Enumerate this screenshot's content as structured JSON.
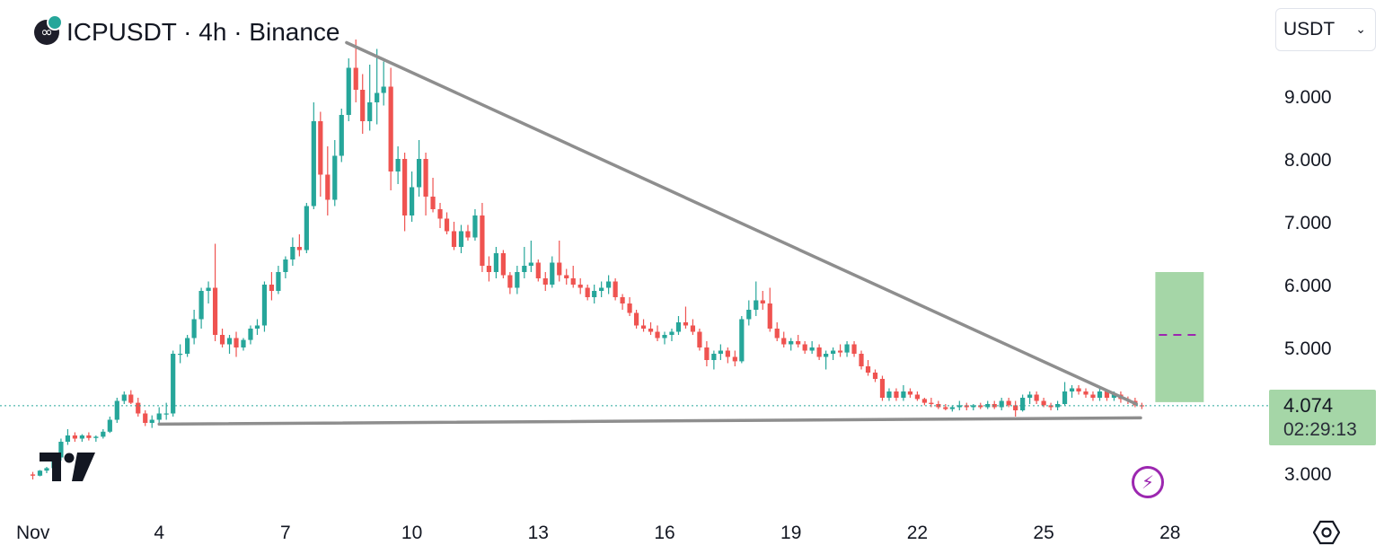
{
  "header": {
    "title": "ICPUSDT · 4h · Binance",
    "currency_label": "USDT"
  },
  "price_badge": {
    "price": "4.074",
    "countdown": "02:29:13"
  },
  "colors": {
    "up": "#26a69a",
    "down": "#ef5350",
    "trendline": "#8e8e8e",
    "position_box": "#a5d6a7",
    "position_target": "#9c27b0"
  },
  "icons": [
    "internet-computer-logo-icon",
    "tether-badge-icon",
    "chevron-down-icon",
    "tradingview-logo-icon",
    "lightning-icon",
    "settings-hexagon-icon"
  ],
  "chart_data": {
    "type": "candlestick",
    "x_tick_labels": [
      "Nov",
      "4",
      "7",
      "10",
      "13",
      "16",
      "19",
      "22",
      "25",
      "28"
    ],
    "x_tick_days": [
      1,
      4,
      7,
      10,
      13,
      16,
      19,
      22,
      25,
      28
    ],
    "y_tick_labels": [
      "3.000",
      "5.000",
      "6.000",
      "7.000",
      "8.000",
      "9.000"
    ],
    "y_tick_values": [
      3,
      5,
      6,
      7,
      8,
      9
    ],
    "y_range": [
      2.5,
      10.0
    ],
    "last_price": 4.074,
    "trendlines": [
      {
        "from": [
          8.45,
          9.85
        ],
        "to": [
          27.2,
          4.1
        ]
      },
      {
        "from": [
          4.0,
          3.78
        ],
        "to": [
          27.3,
          3.88
        ]
      }
    ],
    "position_box": {
      "day_start": 27.65,
      "day_end": 28.8,
      "low": 4.13,
      "high": 6.2,
      "target": 5.2
    },
    "candles": [
      [
        1.0,
        2.98,
        3.02,
        2.9,
        2.96
      ],
      [
        1.17,
        2.96,
        3.05,
        2.95,
        3.04
      ],
      [
        1.33,
        3.04,
        3.1,
        3.0,
        3.08
      ],
      [
        1.5,
        3.08,
        3.3,
        3.06,
        3.25
      ],
      [
        1.67,
        3.25,
        3.55,
        3.2,
        3.5
      ],
      [
        1.83,
        3.5,
        3.7,
        3.45,
        3.6
      ],
      [
        2.0,
        3.6,
        3.65,
        3.5,
        3.55
      ],
      [
        2.17,
        3.55,
        3.62,
        3.5,
        3.6
      ],
      [
        2.33,
        3.6,
        3.65,
        3.52,
        3.56
      ],
      [
        2.5,
        3.56,
        3.6,
        3.5,
        3.58
      ],
      [
        2.67,
        3.58,
        3.7,
        3.55,
        3.66
      ],
      [
        2.83,
        3.66,
        3.9,
        3.64,
        3.85
      ],
      [
        3.0,
        3.85,
        4.2,
        3.8,
        4.15
      ],
      [
        3.17,
        4.15,
        4.3,
        4.1,
        4.25
      ],
      [
        3.33,
        4.25,
        4.32,
        4.1,
        4.12
      ],
      [
        3.5,
        4.12,
        4.2,
        3.9,
        3.95
      ],
      [
        3.67,
        3.95,
        4.0,
        3.75,
        3.8
      ],
      [
        3.83,
        3.8,
        3.92,
        3.72,
        3.85
      ],
      [
        4.0,
        3.85,
        4.05,
        3.8,
        3.95
      ],
      [
        4.17,
        3.95,
        4.12,
        3.85,
        3.95
      ],
      [
        4.33,
        3.95,
        4.95,
        3.9,
        4.9
      ],
      [
        4.5,
        4.9,
        5.05,
        4.75,
        4.9
      ],
      [
        4.67,
        4.9,
        5.2,
        4.85,
        5.15
      ],
      [
        4.83,
        5.15,
        5.6,
        5.05,
        5.45
      ],
      [
        5.0,
        5.45,
        5.95,
        5.3,
        5.9
      ],
      [
        5.17,
        5.9,
        6.05,
        5.7,
        5.95
      ],
      [
        5.33,
        5.95,
        6.65,
        5.1,
        5.2
      ],
      [
        5.5,
        5.2,
        5.3,
        5.0,
        5.05
      ],
      [
        5.67,
        5.05,
        5.2,
        4.9,
        5.15
      ],
      [
        5.83,
        5.15,
        5.25,
        4.85,
        5.0
      ],
      [
        6.0,
        5.0,
        5.15,
        4.95,
        5.12
      ],
      [
        6.17,
        5.12,
        5.35,
        5.05,
        5.3
      ],
      [
        6.33,
        5.3,
        5.45,
        5.2,
        5.35
      ],
      [
        6.5,
        5.35,
        6.05,
        5.25,
        6.0
      ],
      [
        6.67,
        6.0,
        6.2,
        5.75,
        5.9
      ],
      [
        6.83,
        5.9,
        6.3,
        5.85,
        6.2
      ],
      [
        7.0,
        6.2,
        6.45,
        6.1,
        6.4
      ],
      [
        7.17,
        6.4,
        6.75,
        6.3,
        6.6
      ],
      [
        7.33,
        6.6,
        6.8,
        6.45,
        6.55
      ],
      [
        7.5,
        6.55,
        7.3,
        6.5,
        7.25
      ],
      [
        7.67,
        7.25,
        8.9,
        7.2,
        8.6
      ],
      [
        7.83,
        8.6,
        8.75,
        7.4,
        7.75
      ],
      [
        8.0,
        7.75,
        8.2,
        7.1,
        7.35
      ],
      [
        8.17,
        7.35,
        8.3,
        7.25,
        8.05
      ],
      [
        8.33,
        8.05,
        8.8,
        7.95,
        8.7
      ],
      [
        8.5,
        8.7,
        9.6,
        8.6,
        9.45
      ],
      [
        8.67,
        9.45,
        9.9,
        8.9,
        9.1
      ],
      [
        8.83,
        9.1,
        9.35,
        8.4,
        8.6
      ],
      [
        9.0,
        8.6,
        9.5,
        8.45,
        8.9
      ],
      [
        9.17,
        8.9,
        9.75,
        8.55,
        9.05
      ],
      [
        9.33,
        9.05,
        9.55,
        8.85,
        9.15
      ],
      [
        9.5,
        9.15,
        9.45,
        7.5,
        7.8
      ],
      [
        9.67,
        7.8,
        8.2,
        7.6,
        8.0
      ],
      [
        9.83,
        8.0,
        8.1,
        6.85,
        7.1
      ],
      [
        10.0,
        7.1,
        7.8,
        7.0,
        7.55
      ],
      [
        10.17,
        7.55,
        8.3,
        7.4,
        8.0
      ],
      [
        10.33,
        8.0,
        8.1,
        7.1,
        7.4
      ],
      [
        10.5,
        7.4,
        7.7,
        7.15,
        7.2
      ],
      [
        10.67,
        7.2,
        7.3,
        6.9,
        7.05
      ],
      [
        10.83,
        7.05,
        7.15,
        6.8,
        6.85
      ],
      [
        11.0,
        6.85,
        7.0,
        6.55,
        6.6
      ],
      [
        11.17,
        6.6,
        6.95,
        6.5,
        6.85
      ],
      [
        11.33,
        6.85,
        6.95,
        6.7,
        6.75
      ],
      [
        11.5,
        6.75,
        7.2,
        6.7,
        7.1
      ],
      [
        11.67,
        7.1,
        7.3,
        6.2,
        6.3
      ],
      [
        11.83,
        6.3,
        6.45,
        6.05,
        6.2
      ],
      [
        12.0,
        6.2,
        6.6,
        6.1,
        6.5
      ],
      [
        12.17,
        6.5,
        6.55,
        6.1,
        6.15
      ],
      [
        12.33,
        6.15,
        6.2,
        5.85,
        5.95
      ],
      [
        12.5,
        5.95,
        6.3,
        5.85,
        6.2
      ],
      [
        12.67,
        6.2,
        6.6,
        6.1,
        6.3
      ],
      [
        12.83,
        6.3,
        6.7,
        6.2,
        6.35
      ],
      [
        13.0,
        6.35,
        6.4,
        6.05,
        6.1
      ],
      [
        13.17,
        6.1,
        6.2,
        5.9,
        6.0
      ],
      [
        13.33,
        6.0,
        6.45,
        5.95,
        6.35
      ],
      [
        13.5,
        6.35,
        6.7,
        6.05,
        6.15
      ],
      [
        13.67,
        6.15,
        6.25,
        6.0,
        6.1
      ],
      [
        13.83,
        6.1,
        6.3,
        5.95,
        6.0
      ],
      [
        14.0,
        6.0,
        6.1,
        5.85,
        5.95
      ],
      [
        14.17,
        5.95,
        6.0,
        5.75,
        5.8
      ],
      [
        14.33,
        5.8,
        6.0,
        5.7,
        5.9
      ],
      [
        14.5,
        5.9,
        6.05,
        5.8,
        5.95
      ],
      [
        14.67,
        5.95,
        6.15,
        5.85,
        6.05
      ],
      [
        14.83,
        6.05,
        6.1,
        5.75,
        5.8
      ],
      [
        15.0,
        5.8,
        5.85,
        5.6,
        5.7
      ],
      [
        15.17,
        5.7,
        5.8,
        5.5,
        5.55
      ],
      [
        15.33,
        5.55,
        5.6,
        5.3,
        5.35
      ],
      [
        15.5,
        5.35,
        5.45,
        5.25,
        5.3
      ],
      [
        15.67,
        5.3,
        5.4,
        5.2,
        5.25
      ],
      [
        15.83,
        5.25,
        5.35,
        5.1,
        5.15
      ],
      [
        16.0,
        5.15,
        5.25,
        5.05,
        5.2
      ],
      [
        16.17,
        5.2,
        5.3,
        5.1,
        5.25
      ],
      [
        16.33,
        5.25,
        5.5,
        5.2,
        5.4
      ],
      [
        16.5,
        5.4,
        5.65,
        5.3,
        5.35
      ],
      [
        16.67,
        5.35,
        5.45,
        5.2,
        5.25
      ],
      [
        16.83,
        5.25,
        5.3,
        4.95,
        5.0
      ],
      [
        17.0,
        5.0,
        5.1,
        4.7,
        4.8
      ],
      [
        17.17,
        4.8,
        4.95,
        4.65,
        4.9
      ],
      [
        17.33,
        4.9,
        5.05,
        4.8,
        4.95
      ],
      [
        17.5,
        4.95,
        5.0,
        4.75,
        4.85
      ],
      [
        17.67,
        4.85,
        4.95,
        4.7,
        4.78
      ],
      [
        17.83,
        4.78,
        5.5,
        4.75,
        5.45
      ],
      [
        18.0,
        5.45,
        5.75,
        5.35,
        5.6
      ],
      [
        18.17,
        5.6,
        6.05,
        5.5,
        5.75
      ],
      [
        18.33,
        5.75,
        5.9,
        5.6,
        5.7
      ],
      [
        18.5,
        5.7,
        5.95,
        5.25,
        5.3
      ],
      [
        18.67,
        5.3,
        5.4,
        5.1,
        5.15
      ],
      [
        18.83,
        5.15,
        5.25,
        5.0,
        5.05
      ],
      [
        19.0,
        5.05,
        5.15,
        4.95,
        5.1
      ],
      [
        19.17,
        5.1,
        5.2,
        5.0,
        5.05
      ],
      [
        19.33,
        5.05,
        5.1,
        4.9,
        4.95
      ],
      [
        19.5,
        4.95,
        5.1,
        4.9,
        5.0
      ],
      [
        19.67,
        5.0,
        5.05,
        4.8,
        4.85
      ],
      [
        19.83,
        4.85,
        4.95,
        4.65,
        4.9
      ],
      [
        20.0,
        4.9,
        5.0,
        4.8,
        4.95
      ],
      [
        20.17,
        4.95,
        5.05,
        4.85,
        4.92
      ],
      [
        20.33,
        4.92,
        5.1,
        4.85,
        5.05
      ],
      [
        20.5,
        5.05,
        5.1,
        4.85,
        4.9
      ],
      [
        20.67,
        4.9,
        4.95,
        4.65,
        4.7
      ],
      [
        20.83,
        4.7,
        4.8,
        4.55,
        4.6
      ],
      [
        21.0,
        4.6,
        4.65,
        4.45,
        4.5
      ],
      [
        21.17,
        4.5,
        4.55,
        4.15,
        4.2
      ],
      [
        21.33,
        4.2,
        4.35,
        4.15,
        4.3
      ],
      [
        21.5,
        4.3,
        4.35,
        4.15,
        4.2
      ],
      [
        21.67,
        4.2,
        4.4,
        4.15,
        4.3
      ],
      [
        21.83,
        4.3,
        4.35,
        4.2,
        4.25
      ],
      [
        22.0,
        4.25,
        4.3,
        4.15,
        4.18
      ],
      [
        22.17,
        4.18,
        4.2,
        4.08,
        4.12
      ],
      [
        22.33,
        4.12,
        4.2,
        4.05,
        4.1
      ],
      [
        22.5,
        4.1,
        4.15,
        4.02,
        4.05
      ],
      [
        22.67,
        4.05,
        4.1,
        4.0,
        4.02
      ],
      [
        22.83,
        4.02,
        4.08,
        3.98,
        4.05
      ],
      [
        23.0,
        4.05,
        4.15,
        4.0,
        4.08
      ],
      [
        23.17,
        4.08,
        4.12,
        4.0,
        4.05
      ],
      [
        23.33,
        4.05,
        4.1,
        4.0,
        4.08
      ],
      [
        23.5,
        4.08,
        4.12,
        4.02,
        4.05
      ],
      [
        23.67,
        4.05,
        4.15,
        4.02,
        4.1
      ],
      [
        23.83,
        4.1,
        4.15,
        4.02,
        4.05
      ],
      [
        24.0,
        4.05,
        4.2,
        4.0,
        4.15
      ],
      [
        24.17,
        4.15,
        4.2,
        4.05,
        4.08
      ],
      [
        24.33,
        4.08,
        4.15,
        3.9,
        4.0
      ],
      [
        24.5,
        4.0,
        4.25,
        3.98,
        4.2
      ],
      [
        24.67,
        4.2,
        4.3,
        4.1,
        4.25
      ],
      [
        24.83,
        4.25,
        4.3,
        4.1,
        4.15
      ],
      [
        25.0,
        4.15,
        4.2,
        4.05,
        4.08
      ],
      [
        25.17,
        4.08,
        4.12,
        4.0,
        4.05
      ],
      [
        25.33,
        4.05,
        4.15,
        4.0,
        4.1
      ],
      [
        25.5,
        4.1,
        4.45,
        4.08,
        4.3
      ],
      [
        25.67,
        4.3,
        4.4,
        4.2,
        4.35
      ],
      [
        25.83,
        4.35,
        4.4,
        4.25,
        4.3
      ],
      [
        26.0,
        4.3,
        4.35,
        4.2,
        4.25
      ],
      [
        26.17,
        4.25,
        4.3,
        4.15,
        4.2
      ],
      [
        26.33,
        4.2,
        4.35,
        4.15,
        4.3
      ],
      [
        26.5,
        4.3,
        4.32,
        4.15,
        4.2
      ],
      [
        26.67,
        4.2,
        4.3,
        4.15,
        4.25
      ],
      [
        26.83,
        4.25,
        4.3,
        4.12,
        4.18
      ],
      [
        27.0,
        4.18,
        4.22,
        4.1,
        4.15
      ],
      [
        27.17,
        4.15,
        4.2,
        4.05,
        4.08
      ],
      [
        27.33,
        4.08,
        4.12,
        4.02,
        4.07
      ]
    ]
  }
}
